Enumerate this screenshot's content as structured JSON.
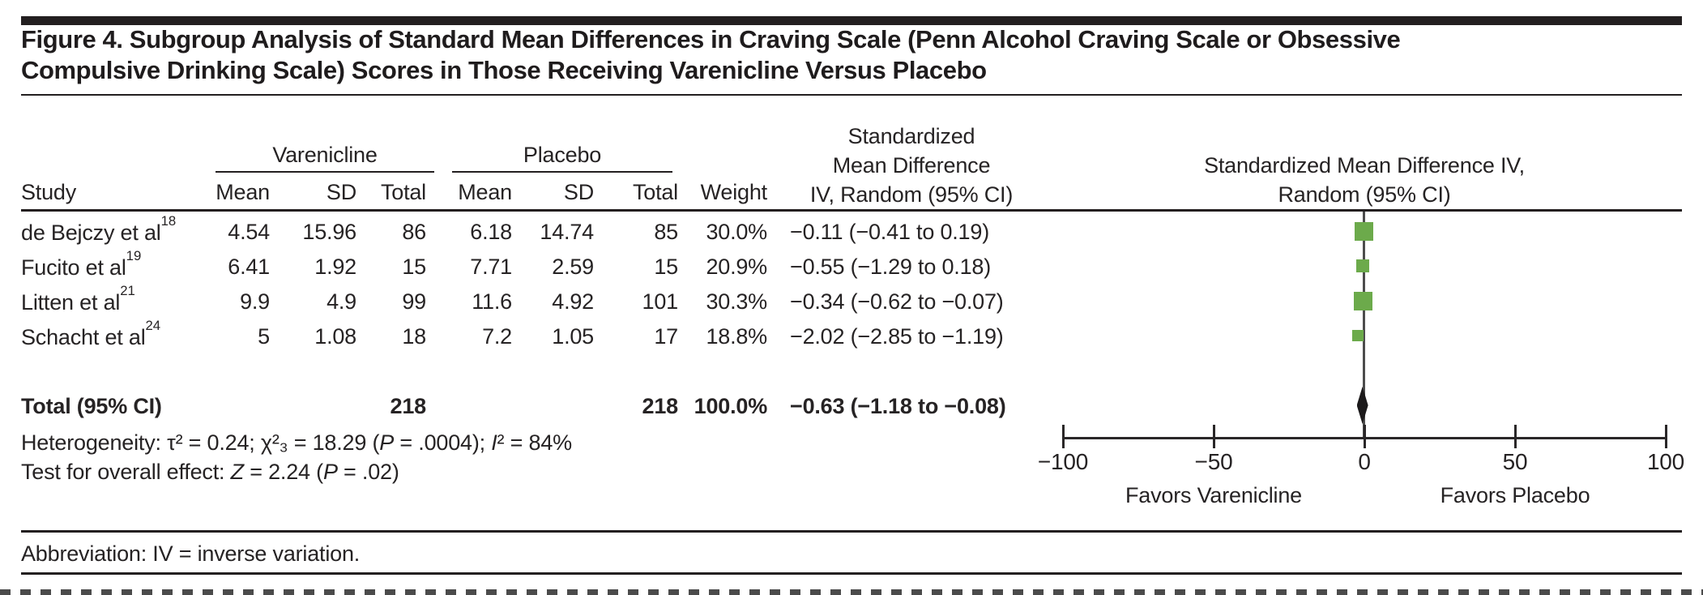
{
  "figure": {
    "title_line1": "Figure 4. Subgroup Analysis of Standard Mean Differences in Craving Scale (Penn Alcohol Craving Scale or Obsessive",
    "title_line2": "Compulsive Drinking Scale) Scores in Those Receiving Varenicline Versus Placebo",
    "abbreviation": "Abbreviation: IV = inverse variation."
  },
  "table": {
    "col_study": "Study",
    "group_varenicline": "Varenicline",
    "group_placebo": "Placebo",
    "col_mean_v": "Mean",
    "col_sd_v": "SD",
    "col_total_v": "Total",
    "col_mean_p": "Mean",
    "col_sd_p": "SD",
    "col_total_p": "Total",
    "col_weight": "Weight",
    "smd_header_l1": "Standardized",
    "smd_header_l2": "Mean Difference",
    "smd_header_l3": "IV, Random (95% CI)",
    "plot_header_l1": "Standardized Mean Difference IV,",
    "plot_header_l2": "Random (95% CI)"
  },
  "chart_data": {
    "type": "forest",
    "effect_measure": "Standardized Mean Difference IV, Random (95% CI)",
    "xlim": [
      -100,
      100
    ],
    "x_ticks": [
      -100,
      -50,
      0,
      50,
      100
    ],
    "x_tick_labels": [
      "−100",
      "−50",
      "0",
      "50",
      "100"
    ],
    "favors_left": "Favors Varenicline",
    "favors_right": "Favors Placebo",
    "marker_color": "#6CAA4B",
    "studies": [
      {
        "study": "de Bejczy et al",
        "ref": "18",
        "v_mean": "4.54",
        "v_sd": "15.96",
        "v_total": "86",
        "p_mean": "6.18",
        "p_sd": "14.74",
        "p_total": "85",
        "weight": "30.0%",
        "smd": -0.11,
        "ci_low": -0.41,
        "ci_high": 0.19,
        "smd_label": "−0.11 (−0.41 to 0.19)"
      },
      {
        "study": "Fucito et al",
        "ref": "19",
        "v_mean": "6.41",
        "v_sd": "1.92",
        "v_total": "15",
        "p_mean": "7.71",
        "p_sd": "2.59",
        "p_total": "15",
        "weight": "20.9%",
        "smd": -0.55,
        "ci_low": -1.29,
        "ci_high": 0.18,
        "smd_label": "−0.55 (−1.29 to 0.18)"
      },
      {
        "study": "Litten et al",
        "ref": "21",
        "v_mean": "9.9",
        "v_sd": "4.9",
        "v_total": "99",
        "p_mean": "11.6",
        "p_sd": "4.92",
        "p_total": "101",
        "weight": "30.3%",
        "smd": -0.34,
        "ci_low": -0.62,
        "ci_high": -0.07,
        "smd_label": "−0.34 (−0.62 to −0.07)"
      },
      {
        "study": "Schacht et al",
        "ref": "24",
        "v_mean": "5",
        "v_sd": "1.08",
        "v_total": "18",
        "p_mean": "7.2",
        "p_sd": "1.05",
        "p_total": "17",
        "weight": "18.8%",
        "smd": -2.02,
        "ci_low": -2.85,
        "ci_high": -1.19,
        "smd_label": "−2.02 (−2.85 to −1.19)"
      }
    ],
    "total": {
      "label": "Total (95% CI)",
      "v_total": "218",
      "p_total": "218",
      "weight": "100.0%",
      "smd": -0.63,
      "ci_low": -1.18,
      "ci_high": -0.08,
      "smd_label": "−0.63 (−1.18 to −0.08)"
    },
    "heterogeneity": {
      "a": "Heterogeneity: τ² = 0.24; χ²₃ = 18.29 (",
      "b": "P",
      "c": " = .0004); ",
      "d": "I",
      "e": "² = 84%"
    },
    "overall_test": {
      "a": "Test for overall effect: ",
      "b": "Z",
      "c": " = 2.24 (",
      "d": "P",
      "e": " = .02)"
    }
  }
}
